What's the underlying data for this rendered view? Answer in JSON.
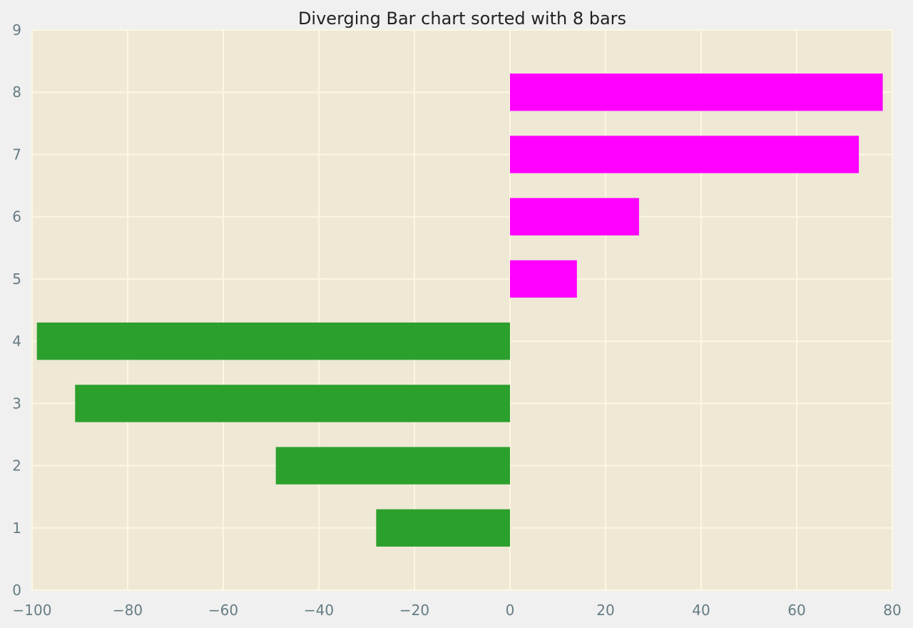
{
  "chart_data": {
    "type": "bar",
    "orientation": "horizontal",
    "title": "Diverging Bar chart sorted with 8 bars",
    "xlabel": "",
    "ylabel": "",
    "xlim": [
      -100,
      80
    ],
    "ylim": [
      0,
      9
    ],
    "xticks": [
      -100,
      -80,
      -60,
      -40,
      -20,
      0,
      20,
      40,
      60,
      80
    ],
    "yticks": [
      0,
      1,
      2,
      3,
      4,
      5,
      6,
      7,
      8,
      9
    ],
    "xtick_labels": [
      "−100",
      "−80",
      "−60",
      "−40",
      "−20",
      "0",
      "20",
      "40",
      "60",
      "80"
    ],
    "ytick_labels": [
      "0",
      "1",
      "2",
      "3",
      "4",
      "5",
      "6",
      "7",
      "8",
      "9"
    ],
    "grid": true,
    "categories": [
      1,
      2,
      3,
      4,
      5,
      6,
      7,
      8
    ],
    "values": [
      -28,
      -49,
      -91,
      -99,
      14,
      27,
      73,
      78
    ],
    "bar_height": 0.6,
    "colors": {
      "negative": "#2ca02c",
      "positive": "#ff00ff",
      "plot_background": "#eee8d5",
      "figure_background": "#f0f0f0",
      "grid": "#fdf6e3",
      "tick_label": "#657b83",
      "title": "#222222"
    }
  }
}
